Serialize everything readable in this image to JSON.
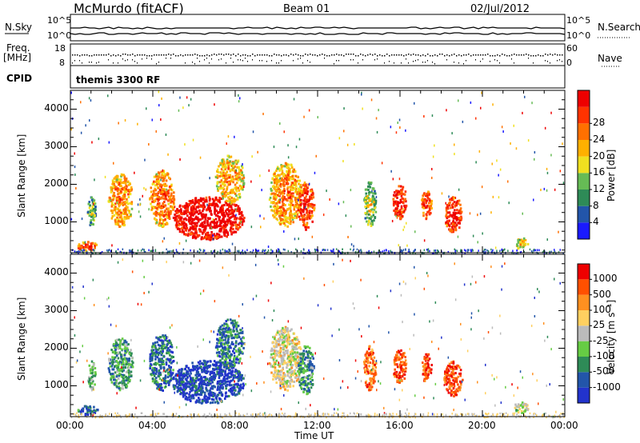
{
  "header": {
    "station": "McMurdo (fitACF)",
    "beam": "Beam 01",
    "date": "02/Jul/2012"
  },
  "aux_panels": {
    "nsky_label": "N.Sky",
    "nsky_ticks": [
      "10^5",
      "10^0"
    ],
    "nsearch_label": "N.Search",
    "nsearch_ticks": [
      "10^5",
      "10^0"
    ],
    "freq_label": "Freq.",
    "freq_unit": "[MHz]",
    "freq_ticks": [
      "18",
      "8"
    ],
    "nave_label": "Nave",
    "nave_ticks": [
      "60",
      "0"
    ],
    "cpid_label": "CPID",
    "cpid_value": "themis 3300 RF"
  },
  "chart_data": [
    {
      "type": "heatmap",
      "name": "power",
      "ylabel": "Slant Range [km]",
      "xlabel": "Time UT",
      "xlim_hours": [
        0,
        24
      ],
      "ylim_km": [
        180,
        4500
      ],
      "yticks": [
        "1000",
        "2000",
        "3000",
        "4000"
      ],
      "xticks": [
        "00:00",
        "04:00",
        "08:00",
        "12:00",
        "16:00",
        "20:00",
        "00:00"
      ],
      "colorbar": {
        "label": "Power [dB]",
        "ticks": [
          "4",
          "8",
          "12",
          "16",
          "20",
          "24",
          "28"
        ],
        "colors": [
          "#1a1aff",
          "#2255aa",
          "#2e8b57",
          "#66bb55",
          "#f0e020",
          "#ffb000",
          "#ff7000",
          "#ff3300",
          "#ee0000"
        ]
      },
      "echo_regions": [
        {
          "t0": 0.3,
          "t1": 1.3,
          "r0": 250,
          "r1": 500,
          "level": 0.7
        },
        {
          "t0": 0.8,
          "t1": 1.2,
          "r0": 900,
          "r1": 1700,
          "level": 0.3
        },
        {
          "t0": 1.8,
          "t1": 3.0,
          "r0": 900,
          "r1": 2300,
          "level": 0.55
        },
        {
          "t0": 3.8,
          "t1": 5.0,
          "r0": 900,
          "r1": 2400,
          "level": 0.6
        },
        {
          "t0": 4.9,
          "t1": 8.4,
          "r0": 550,
          "r1": 1700,
          "level": 0.9
        },
        {
          "t0": 7.0,
          "t1": 8.4,
          "r0": 1500,
          "r1": 2800,
          "level": 0.5
        },
        {
          "t0": 9.6,
          "t1": 11.2,
          "r0": 900,
          "r1": 2600,
          "level": 0.55
        },
        {
          "t0": 11.0,
          "t1": 11.8,
          "r0": 800,
          "r1": 2100,
          "level": 0.75
        },
        {
          "t0": 14.2,
          "t1": 14.8,
          "r0": 900,
          "r1": 2100,
          "level": 0.35
        },
        {
          "t0": 15.6,
          "t1": 16.3,
          "r0": 1100,
          "r1": 2000,
          "level": 0.8
        },
        {
          "t0": 17.0,
          "t1": 17.5,
          "r0": 1100,
          "r1": 1900,
          "level": 0.7
        },
        {
          "t0": 18.1,
          "t1": 19.0,
          "r0": 750,
          "r1": 1700,
          "level": 0.8
        },
        {
          "t0": 21.5,
          "t1": 22.2,
          "r0": 300,
          "r1": 600,
          "level": 0.4
        }
      ]
    },
    {
      "type": "heatmap",
      "name": "velocity",
      "ylabel": "Slant Range [km]",
      "xlabel": "Time UT",
      "xlim_hours": [
        0,
        24
      ],
      "ylim_km": [
        180,
        4500
      ],
      "yticks": [
        "1000",
        "2000",
        "3000",
        "4000"
      ],
      "xticks": [
        "00:00",
        "04:00",
        "08:00",
        "12:00",
        "16:00",
        "20:00",
        "00:00"
      ],
      "colorbar": {
        "label": "Velocity [m s⁻¹]",
        "ticks": [
          "1000",
          "500",
          "100",
          "25",
          "-25",
          "-100",
          "-500",
          "-1000"
        ],
        "colors": [
          "#2233cc",
          "#2255aa",
          "#2e8b57",
          "#66cc44",
          "#bbbbbb",
          "#ffd060",
          "#ff9020",
          "#ff5000",
          "#ee0000"
        ]
      },
      "echo_regions": [
        {
          "t0": 0.3,
          "t1": 1.3,
          "r0": 250,
          "r1": 500,
          "level": 0.2
        },
        {
          "t0": 0.8,
          "t1": 1.2,
          "r0": 900,
          "r1": 1700,
          "level": 0.4
        },
        {
          "t0": 1.8,
          "t1": 3.0,
          "r0": 900,
          "r1": 2300,
          "level": 0.3
        },
        {
          "t0": 3.8,
          "t1": 5.0,
          "r0": 900,
          "r1": 2400,
          "level": 0.2
        },
        {
          "t0": 4.9,
          "t1": 8.4,
          "r0": 550,
          "r1": 1700,
          "level": 0.1
        },
        {
          "t0": 7.0,
          "t1": 8.4,
          "r0": 1500,
          "r1": 2800,
          "level": 0.25
        },
        {
          "t0": 9.6,
          "t1": 11.2,
          "r0": 900,
          "r1": 2600,
          "level": 0.55
        },
        {
          "t0": 11.0,
          "t1": 11.8,
          "r0": 800,
          "r1": 2100,
          "level": 0.3
        },
        {
          "t0": 14.2,
          "t1": 14.8,
          "r0": 900,
          "r1": 2100,
          "level": 0.8
        },
        {
          "t0": 15.6,
          "t1": 16.3,
          "r0": 1100,
          "r1": 2000,
          "level": 0.85
        },
        {
          "t0": 17.0,
          "t1": 17.5,
          "r0": 1100,
          "r1": 1900,
          "level": 0.85
        },
        {
          "t0": 18.1,
          "t1": 19.0,
          "r0": 750,
          "r1": 1700,
          "level": 0.85
        },
        {
          "t0": 21.5,
          "t1": 22.2,
          "r0": 300,
          "r1": 600,
          "level": 0.5
        }
      ]
    }
  ]
}
